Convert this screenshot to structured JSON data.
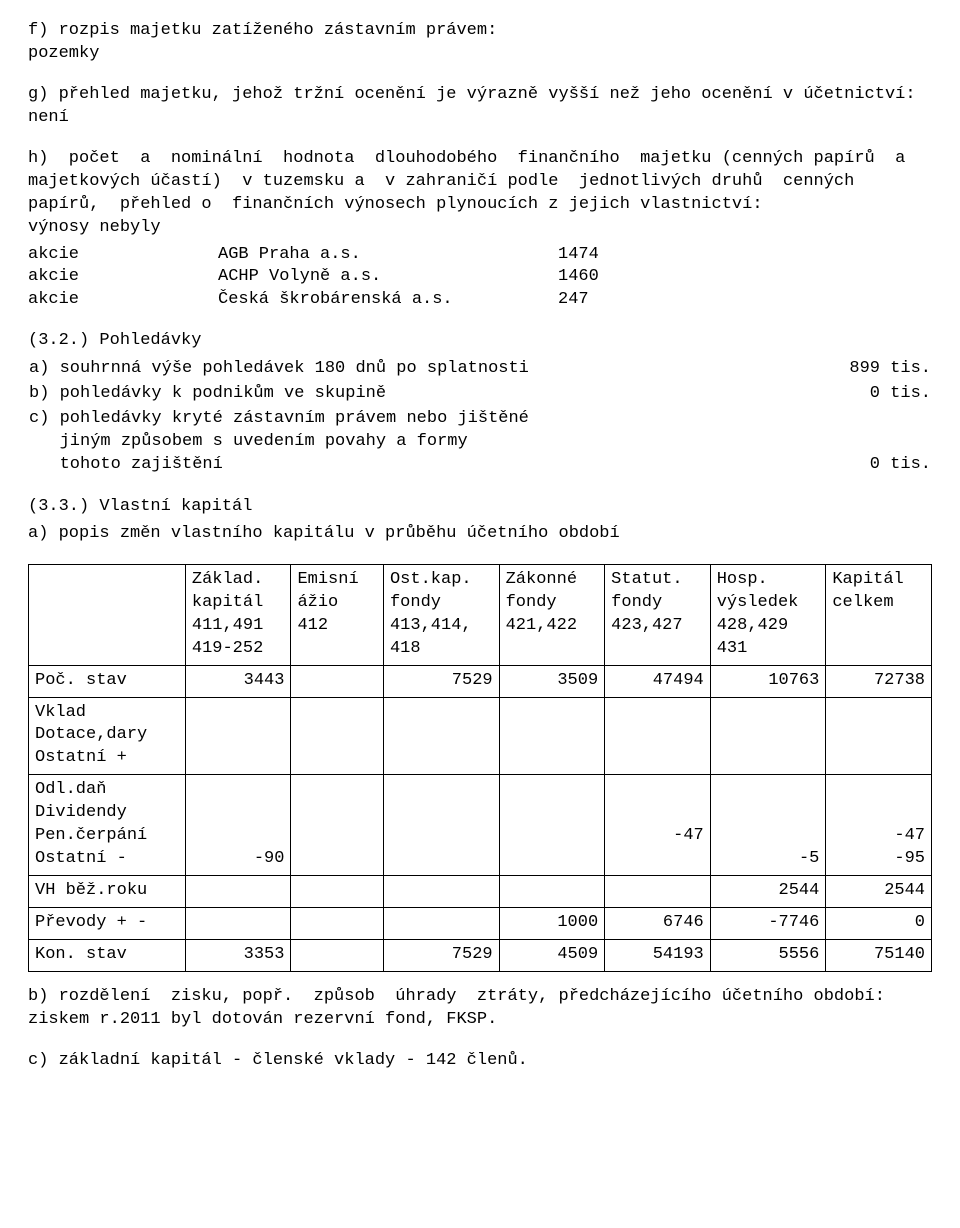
{
  "para_f": "f) rozpis majetku zatíženého zástavním právem:\npozemky",
  "para_g": "g) přehled majetku, jehož tržní ocenění je výrazně vyšší než jeho ocenění v účetnictví: není",
  "para_h_intro": "h)  počet  a  nominální  hodnota  dlouhodobého  finančního  majetku (cenných papírů  a majetkových účastí)  v tuzemsku a  v zahraničí podle  jednotlivých druhů  cenných papírů,  přehled o  finančních výnosech plynoucích z jejich vlastnictví:\nvýnosy nebyly",
  "akcie": [
    {
      "typ": "akcie",
      "nazev": "AGB Praha a.s.",
      "hodnota": "1474"
    },
    {
      "typ": "akcie",
      "nazev": "ACHP Volyně a.s.",
      "hodnota": "1460"
    },
    {
      "typ": "akcie",
      "nazev": "Česká škrobárenská a.s.",
      "hodnota": "247"
    }
  ],
  "sec32_title": "(3.2.) Pohledávky",
  "sec32_items": [
    {
      "text": "a) souhrnná výše pohledávek 180 dnů po splatnosti",
      "val": "899 tis."
    },
    {
      "text": "b) pohledávky k podnikům ve skupině",
      "val": "0 tis."
    },
    {
      "text": "c) pohledávky kryté zástavním právem nebo jištěné\n   jiným způsobem s uvedením povahy a formy\n   tohoto zajištění",
      "val": "0 tis."
    }
  ],
  "sec33_title": "(3.3.) Vlastní kapitál",
  "sec33_a": "a) popis změn vlastního kapitálu v průběhu účetního období",
  "kapital": {
    "headers": [
      "Základ.\nkapitál\n411,491\n419-252",
      "Emisní\nážio\n412",
      "Ost.kap.\nfondy\n413,414,\n418",
      "Zákonné\nfondy\n421,422",
      "Statut.\nfondy\n423,427",
      "Hosp.\nvýsledek\n428,429\n431",
      "Kapitál\ncelkem"
    ],
    "rows": [
      {
        "label": "Poč. stav",
        "cells": [
          "3443",
          "",
          "7529",
          "3509",
          "47494",
          "10763",
          "72738"
        ]
      },
      {
        "label": "Vklad\nDotace,dary\nOstatní +",
        "cells": [
          "",
          "",
          "",
          "",
          "",
          "",
          ""
        ]
      },
      {
        "label": "Odl.daň\nDividendy\nPen.čerpání\nOstatní -",
        "cells": [
          "\n\n\n-90",
          "",
          "",
          "",
          "\n\n-47",
          "\n\n\n-5",
          "\n\n-47\n-95"
        ]
      },
      {
        "label": "VH běž.roku",
        "cells": [
          "",
          "",
          "",
          "",
          "",
          "2544",
          "2544"
        ]
      },
      {
        "label": "Převody + -",
        "cells": [
          "",
          "",
          "",
          "1000",
          "6746",
          "-7746",
          "0"
        ]
      },
      {
        "label": "Kon. stav",
        "cells": [
          "3353",
          "",
          "7529",
          "4509",
          "54193",
          "5556",
          "75140"
        ]
      }
    ]
  },
  "sec33_b": "b) rozdělení  zisku, popř.  způsob  úhrady  ztráty, předcházejícího účetního období:\nziskem r.2011 byl dotován rezervní fond, FKSP.",
  "sec33_c": "c) základní kapitál - členské vklady - 142 členů."
}
